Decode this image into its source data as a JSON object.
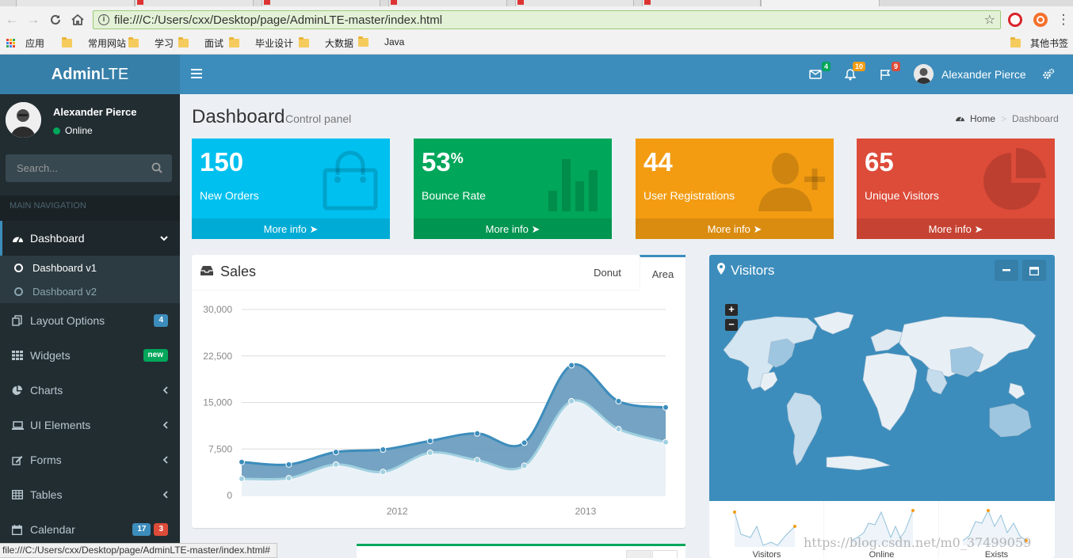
{
  "browser": {
    "url": "file:///C:/Users/cxx/Desktop/page/AdminLTE-master/index.html",
    "bookmarks": [
      "应用",
      "常用网站",
      "学习",
      "面试",
      "毕业设计",
      "大数据",
      "Java"
    ],
    "other_bookmarks": "其他书签",
    "status_url": "file:///C:/Users/cxx/Desktop/page/AdminLTE-master/index.html#"
  },
  "header": {
    "logo_bold": "Admin",
    "logo_rest": "LTE",
    "messages_count": "4",
    "notifications_count": "10",
    "tasks_count": "9",
    "user_name": "Alexander Pierce",
    "colors": {
      "header": "#3c8dbc",
      "logo": "#367fa9"
    }
  },
  "sidebar": {
    "user_name": "Alexander Pierce",
    "status": "Online",
    "search_placeholder": "Search...",
    "section_header": "MAIN NAVIGATION",
    "items": [
      {
        "label": "Dashboard",
        "icon": "dashboard-icon"
      },
      {
        "label": "Layout Options",
        "icon": "files-icon",
        "badge": "4"
      },
      {
        "label": "Widgets",
        "icon": "th-icon",
        "badge": "new"
      },
      {
        "label": "Charts",
        "icon": "pie-chart-icon"
      },
      {
        "label": "UI Elements",
        "icon": "laptop-icon"
      },
      {
        "label": "Forms",
        "icon": "edit-icon"
      },
      {
        "label": "Tables",
        "icon": "table-icon"
      },
      {
        "label": "Calendar",
        "icon": "calendar-icon",
        "badges": [
          "17",
          "3"
        ]
      }
    ],
    "dashboard_sub": [
      "Dashboard v1",
      "Dashboard v2"
    ]
  },
  "content": {
    "title": "Dashboard",
    "subtitle": "Control panel",
    "breadcrumb": [
      "Home",
      "Dashboard"
    ]
  },
  "stat_boxes": [
    {
      "value": "150",
      "suffix": "",
      "label": "New Orders",
      "link": "More info",
      "color": "#00c0ef",
      "icon": "shopping-bag-icon"
    },
    {
      "value": "53",
      "suffix": "%",
      "label": "Bounce Rate",
      "link": "More info",
      "color": "#00a65a",
      "icon": "bar-chart-icon"
    },
    {
      "value": "44",
      "suffix": "",
      "label": "User Registrations",
      "link": "More info",
      "color": "#f39c12",
      "icon": "user-plus-icon"
    },
    {
      "value": "65",
      "suffix": "",
      "label": "Unique Visitors",
      "link": "More info",
      "color": "#dd4b39",
      "icon": "pie-chart-icon"
    }
  ],
  "sales": {
    "title": "Sales",
    "tabs": [
      "Donut",
      "Area"
    ],
    "active_tab": "Area"
  },
  "chart_data": {
    "type": "area",
    "x_ticks": [
      "2012",
      "2013"
    ],
    "y_ticks": [
      "30,000",
      "22,500",
      "15,000",
      "7,500",
      "0"
    ],
    "ylim": [
      0,
      30000
    ],
    "x": [
      0,
      1,
      2,
      3,
      4,
      5,
      6,
      7,
      8,
      9
    ],
    "series": [
      {
        "color": "#3c8dbc",
        "values": [
          5400,
          5000,
          7000,
          7400,
          8800,
          10000,
          8500,
          21000,
          15200,
          14200
        ]
      },
      {
        "color": "#a0d0e0",
        "values": [
          2700,
          2800,
          5000,
          3800,
          6900,
          5700,
          4800,
          15200,
          10700,
          8600
        ]
      }
    ]
  },
  "visitors": {
    "title": "Visitors",
    "spark_labels": [
      "Visitors",
      "Online",
      "Exists"
    ]
  },
  "watermark": "https://blog.csdn.net/m0_37499059"
}
